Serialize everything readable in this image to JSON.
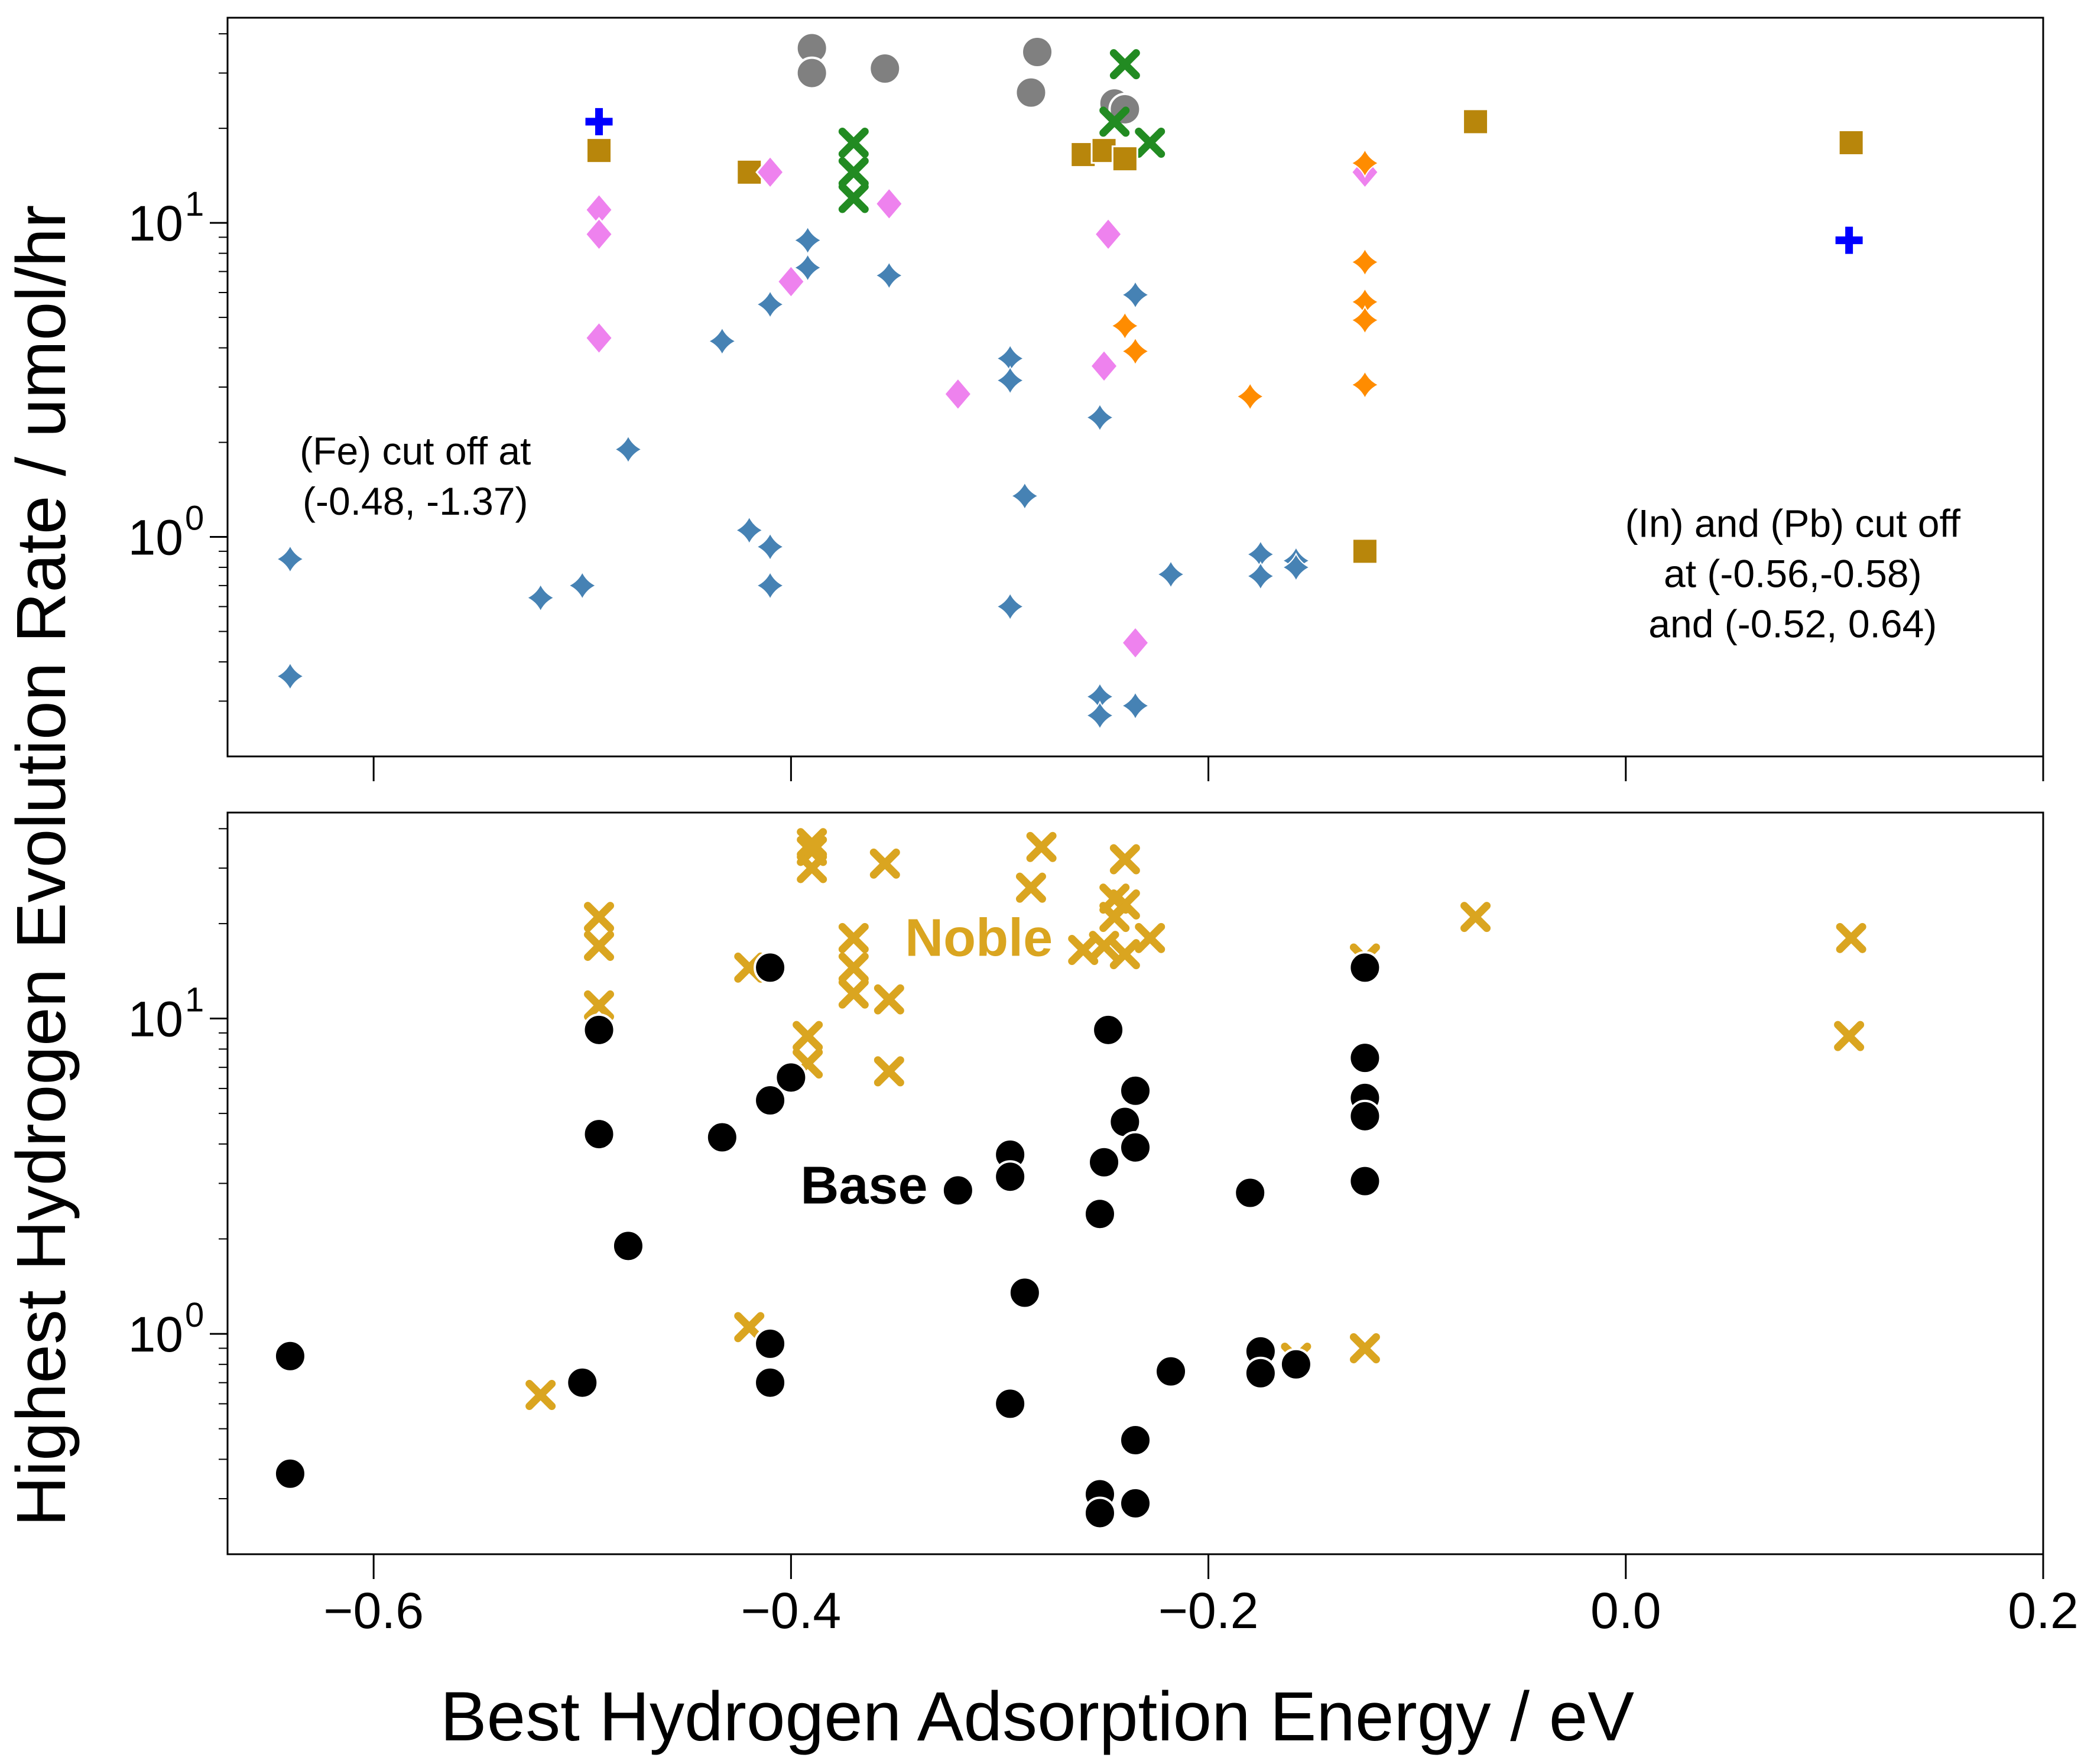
{
  "figure": {
    "xlabel": "Best Hydrogen Adsorption Energy / eV",
    "ylabel": "Highest Hydrogen Evolution Rate / umol/hr"
  },
  "chart_data": [
    {
      "type": "scatter",
      "panel": "top",
      "xlim": [
        -0.67,
        0.2
      ],
      "ylim": [
        0.2,
        45
      ],
      "yscale": "log",
      "x_ticks": [
        -0.6,
        -0.4,
        -0.2,
        0.0,
        0.2
      ],
      "y_ticks": [
        {
          "value": 1,
          "label": "10",
          "exp": "0"
        },
        {
          "value": 10,
          "label": "10",
          "exp": "1"
        }
      ],
      "grid": false,
      "annotations": [
        {
          "lines": [
            "(Fe) cut off at",
            "(-0.48, -1.37)"
          ],
          "x": -0.58,
          "y": 1.7
        },
        {
          "lines": [
            "(In) and (Pb) cut off",
            "at (-0.56,-0.58)",
            "and (-0.52, 0.64)"
          ],
          "x": 0.08,
          "y": 1.0
        }
      ],
      "series": [
        {
          "marker": "circle",
          "color": "#808080",
          "points": [
            [
              -0.39,
              36
            ],
            [
              -0.39,
              30
            ],
            [
              -0.355,
              31
            ],
            [
              -0.282,
              35
            ],
            [
              -0.285,
              26
            ],
            [
              -0.245,
              24
            ],
            [
              -0.24,
              23
            ]
          ]
        },
        {
          "marker": "x",
          "color": "#228B22",
          "points": [
            [
              -0.24,
              32
            ],
            [
              -0.37,
              18
            ],
            [
              -0.37,
              14.5
            ],
            [
              -0.37,
              12
            ],
            [
              -0.228,
              18
            ],
            [
              -0.245,
              21
            ]
          ]
        },
        {
          "marker": "square",
          "color": "#B8860B",
          "points": [
            [
              -0.492,
              17
            ],
            [
              -0.42,
              14.5
            ],
            [
              -0.26,
              16.5
            ],
            [
              -0.25,
              17
            ],
            [
              -0.24,
              16
            ],
            [
              -0.072,
              21
            ],
            [
              0.108,
              18
            ],
            [
              -0.125,
              0.9
            ]
          ]
        },
        {
          "marker": "plus",
          "color": "#0000FF",
          "points": [
            [
              -0.492,
              21
            ],
            [
              0.107,
              8.8
            ]
          ]
        },
        {
          "marker": "diamond",
          "color": "#EE82EE",
          "points": [
            [
              -0.41,
              14.5
            ],
            [
              -0.353,
              11.5
            ],
            [
              -0.492,
              11
            ],
            [
              -0.492,
              9.2
            ],
            [
              -0.248,
              9.2
            ],
            [
              -0.4,
              6.5
            ],
            [
              -0.492,
              4.3
            ],
            [
              -0.25,
              3.5
            ],
            [
              -0.32,
              2.85
            ],
            [
              -0.235,
              0.46
            ],
            [
              -0.125,
              14.5
            ]
          ]
        },
        {
          "marker": "star4",
          "color": "#FF8C00",
          "points": [
            [
              -0.125,
              15.5
            ],
            [
              -0.125,
              7.5
            ],
            [
              -0.125,
              5.6
            ],
            [
              -0.125,
              4.9
            ],
            [
              -0.24,
              4.7
            ],
            [
              -0.235,
              3.9
            ],
            [
              -0.125,
              3.05
            ],
            [
              -0.18,
              2.8
            ]
          ]
        },
        {
          "marker": "star4",
          "color": "#4682B4",
          "points": [
            [
              -0.392,
              8.8
            ],
            [
              -0.392,
              7.2
            ],
            [
              -0.353,
              6.8
            ],
            [
              -0.41,
              5.5
            ],
            [
              -0.433,
              4.2
            ],
            [
              -0.295,
              3.7
            ],
            [
              -0.295,
              3.15
            ],
            [
              -0.252,
              2.4
            ],
            [
              -0.478,
              1.9
            ],
            [
              -0.288,
              1.35
            ],
            [
              -0.42,
              1.05
            ],
            [
              -0.41,
              0.93
            ],
            [
              -0.64,
              0.85
            ],
            [
              -0.175,
              0.88
            ],
            [
              -0.158,
              0.84
            ],
            [
              -0.175,
              0.75
            ],
            [
              -0.158,
              0.8
            ],
            [
              -0.218,
              0.76
            ],
            [
              -0.235,
              5.9
            ],
            [
              -0.5,
              0.7
            ],
            [
              -0.41,
              0.7
            ],
            [
              -0.52,
              0.64
            ],
            [
              -0.295,
              0.6
            ],
            [
              -0.64,
              0.36
            ],
            [
              -0.252,
              0.31
            ],
            [
              -0.235,
              0.29
            ],
            [
              -0.252,
              0.27
            ]
          ]
        }
      ]
    },
    {
      "type": "scatter",
      "panel": "bottom",
      "xlim": [
        -0.67,
        0.2
      ],
      "ylim": [
        0.2,
        45
      ],
      "yscale": "log",
      "x_ticks": [
        -0.6,
        -0.4,
        -0.2,
        0.0,
        0.2
      ],
      "y_ticks": [
        {
          "value": 1,
          "label": "10",
          "exp": "0"
        },
        {
          "value": 10,
          "label": "10",
          "exp": "1"
        }
      ],
      "grid": false,
      "labels": [
        {
          "text": "Noble",
          "color": "#DAA520",
          "x": -0.31,
          "y": 18
        },
        {
          "text": "Base",
          "color": "#000000",
          "x": -0.365,
          "y": 2.95
        }
      ],
      "series": [
        {
          "name": "Noble",
          "marker": "x",
          "color": "#DAA520",
          "points": [
            [
              -0.39,
              36
            ],
            [
              -0.39,
              34
            ],
            [
              -0.39,
              30
            ],
            [
              -0.355,
              31
            ],
            [
              -0.28,
              35
            ],
            [
              -0.285,
              26
            ],
            [
              -0.24,
              32
            ],
            [
              -0.245,
              24
            ],
            [
              -0.24,
              23
            ],
            [
              -0.245,
              21
            ],
            [
              -0.492,
              21
            ],
            [
              -0.492,
              17
            ],
            [
              -0.37,
              18
            ],
            [
              -0.37,
              14.5
            ],
            [
              -0.37,
              12
            ],
            [
              -0.42,
              14.5
            ],
            [
              -0.353,
              11.5
            ],
            [
              -0.228,
              18
            ],
            [
              -0.26,
              16.5
            ],
            [
              -0.25,
              17
            ],
            [
              -0.24,
              16
            ],
            [
              -0.072,
              21
            ],
            [
              0.108,
              18
            ],
            [
              0.107,
              8.8
            ],
            [
              -0.492,
              11
            ],
            [
              -0.392,
              8.8
            ],
            [
              -0.392,
              7.2
            ],
            [
              -0.353,
              6.8
            ],
            [
              -0.125,
              15.5
            ],
            [
              -0.42,
              1.05
            ],
            [
              -0.52,
              0.64
            ],
            [
              -0.125,
              0.9
            ],
            [
              -0.175,
              0.83
            ],
            [
              -0.158,
              0.84
            ]
          ]
        },
        {
          "name": "Base",
          "marker": "circle",
          "color": "#000000",
          "points": [
            [
              -0.41,
              14.5
            ],
            [
              -0.125,
              14.5
            ],
            [
              -0.492,
              9.2
            ],
            [
              -0.248,
              9.2
            ],
            [
              -0.4,
              6.5
            ],
            [
              -0.41,
              5.5
            ],
            [
              -0.125,
              7.5
            ],
            [
              -0.125,
              5.6
            ],
            [
              -0.125,
              4.9
            ],
            [
              -0.235,
              5.9
            ],
            [
              -0.24,
              4.7
            ],
            [
              -0.235,
              3.9
            ],
            [
              -0.492,
              4.3
            ],
            [
              -0.433,
              4.2
            ],
            [
              -0.295,
              3.7
            ],
            [
              -0.25,
              3.5
            ],
            [
              -0.295,
              3.15
            ],
            [
              -0.125,
              3.05
            ],
            [
              -0.32,
              2.85
            ],
            [
              -0.18,
              2.8
            ],
            [
              -0.252,
              2.4
            ],
            [
              -0.478,
              1.9
            ],
            [
              -0.288,
              1.35
            ],
            [
              -0.41,
              0.93
            ],
            [
              -0.64,
              0.85
            ],
            [
              -0.175,
              0.88
            ],
            [
              -0.175,
              0.75
            ],
            [
              -0.158,
              0.8
            ],
            [
              -0.218,
              0.76
            ],
            [
              -0.5,
              0.7
            ],
            [
              -0.41,
              0.7
            ],
            [
              -0.295,
              0.6
            ],
            [
              -0.235,
              0.46
            ],
            [
              -0.64,
              0.36
            ],
            [
              -0.252,
              0.31
            ],
            [
              -0.235,
              0.29
            ],
            [
              -0.252,
              0.27
            ]
          ]
        }
      ]
    }
  ]
}
